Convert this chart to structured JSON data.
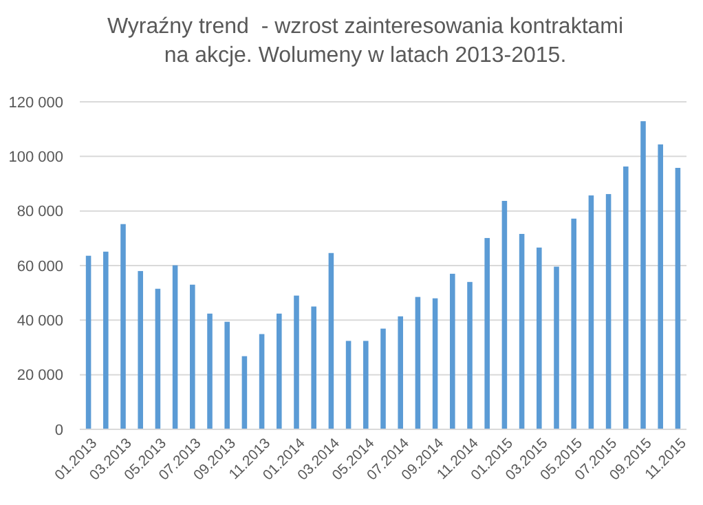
{
  "chart_data": {
    "type": "bar",
    "title": "Wyraźny trend  - wzrost zainteresowania kontraktami na akcje. Wolumeny w latach 2013-2015.",
    "categories": [
      "01.2013",
      null,
      "03.2013",
      null,
      "05.2013",
      null,
      "07.2013",
      null,
      "09.2013",
      null,
      "11.2013",
      null,
      "01.2014",
      null,
      "03.2014",
      null,
      "05.2014",
      null,
      "07.2014",
      null,
      "09.2014",
      null,
      "11.2014",
      null,
      "01.2015",
      null,
      "03.2015",
      null,
      "05.2015",
      null,
      "07.2015",
      null,
      "09.2015",
      null,
      "11.2015"
    ],
    "values": [
      63600,
      65100,
      75200,
      58000,
      51500,
      60100,
      53000,
      42400,
      39400,
      26800,
      34900,
      42400,
      49000,
      45000,
      64600,
      32400,
      32400,
      36900,
      41400,
      48500,
      48000,
      57000,
      54000,
      70100,
      83700,
      71600,
      66600,
      59600,
      77200,
      85700,
      86200,
      96300,
      112900,
      104400,
      95800
    ],
    "color": "#5b9bd5",
    "ylim": [
      0,
      120000
    ],
    "yticks": [
      {
        "value": 0,
        "label": "0"
      },
      {
        "value": 20000,
        "label": "20 000"
      },
      {
        "value": 40000,
        "label": "40 000"
      },
      {
        "value": 60000,
        "label": "60 000"
      },
      {
        "value": 80000,
        "label": "80 000"
      },
      {
        "value": 100000,
        "label": "100 000"
      },
      {
        "value": 120000,
        "label": "120 000"
      }
    ],
    "grid": "y"
  }
}
